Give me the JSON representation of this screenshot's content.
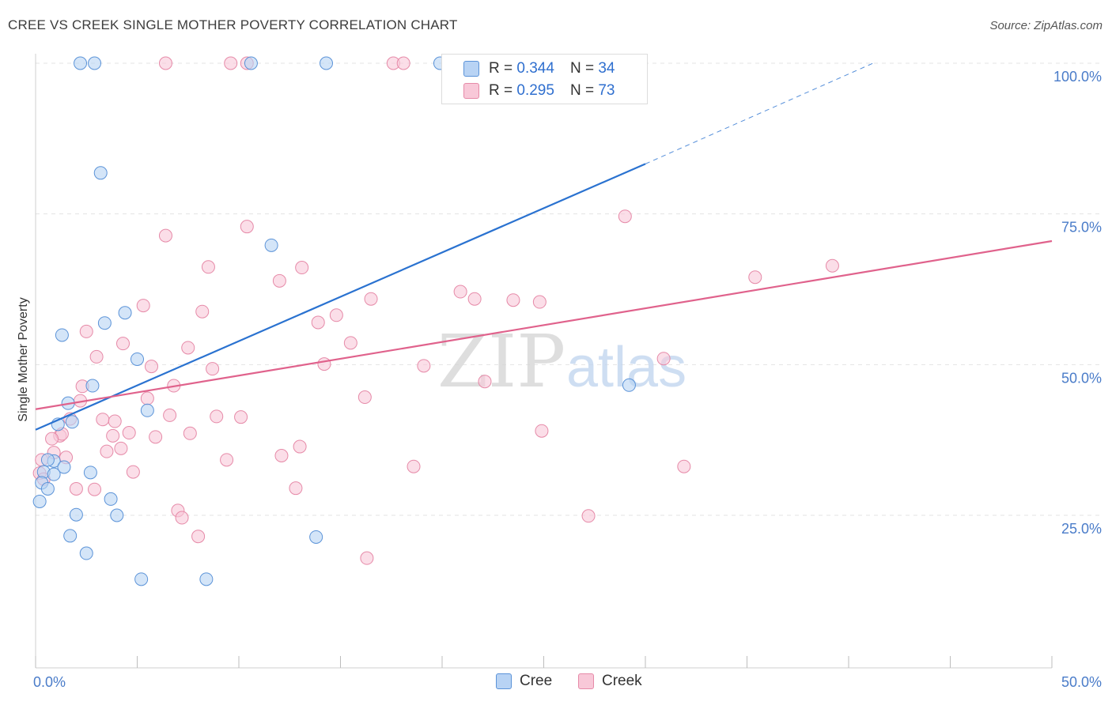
{
  "header": {
    "title": "CREE VS CREEK SINGLE MOTHER POVERTY CORRELATION CHART",
    "source": "Source: ZipAtlas.com"
  },
  "watermark": {
    "zip": "ZIP",
    "atlas": "atlas"
  },
  "legend": {
    "rows": [
      {
        "r_label": "R =",
        "r_value": "0.344",
        "n_label": "N =",
        "n_value": "34"
      },
      {
        "r_label": "R =",
        "r_value": "0.295",
        "n_label": "N =",
        "n_value": "73"
      }
    ]
  },
  "bottom_legend": [
    "Cree",
    "Creek"
  ],
  "colors": {
    "cree_fill": "#b8d3f4",
    "cree_stroke": "#5b93d8",
    "cree_line": "#2a72d0",
    "creek_fill": "#f8c8d8",
    "creek_stroke": "#e68aa8",
    "creek_line": "#e0628c",
    "grid": "#e3e3e3",
    "axis_text": "#4a7cc9"
  },
  "chart_data": {
    "type": "scatter",
    "title": "CREE VS CREEK SINGLE MOTHER POVERTY CORRELATION CHART",
    "xlabel": "",
    "ylabel": "Single Mother Poverty",
    "xlim": [
      0,
      50
    ],
    "ylim": [
      0,
      102
    ],
    "x_tick_labels": [
      "0.0%",
      "50.0%"
    ],
    "y_ticks": [
      25,
      50,
      75,
      100
    ],
    "y_tick_labels": [
      "25.0%",
      "50.0%",
      "75.0%",
      "100.0%"
    ],
    "grid": true,
    "series": [
      {
        "name": "Cree",
        "r": 0.344,
        "n": 34,
        "trend": {
          "x0": 0,
          "y0": 39.2,
          "x1": 30,
          "y1": 83.3,
          "dashed_to_x": 41.2,
          "dashed_to_y": 100
        },
        "points": [
          [
            2.2,
            100
          ],
          [
            2.9,
            100
          ],
          [
            10.6,
            100
          ],
          [
            14.3,
            100
          ],
          [
            19.9,
            100
          ],
          [
            3.2,
            81.8
          ],
          [
            11.6,
            69.8
          ],
          [
            4.4,
            58.6
          ],
          [
            3.4,
            56.9
          ],
          [
            1.3,
            54.9
          ],
          [
            5.0,
            50.9
          ],
          [
            2.8,
            46.5
          ],
          [
            29.2,
            46.6
          ],
          [
            1.6,
            43.6
          ],
          [
            5.5,
            42.4
          ],
          [
            1.1,
            40.1
          ],
          [
            1.8,
            40.5
          ],
          [
            0.9,
            34.0
          ],
          [
            1.4,
            33.0
          ],
          [
            0.4,
            32.2
          ],
          [
            0.9,
            31.8
          ],
          [
            2.7,
            32.1
          ],
          [
            0.3,
            30.4
          ],
          [
            0.6,
            29.4
          ],
          [
            3.7,
            27.7
          ],
          [
            0.2,
            27.3
          ],
          [
            2.0,
            25.1
          ],
          [
            4.0,
            25.0
          ],
          [
            1.7,
            21.6
          ],
          [
            13.8,
            21.4
          ],
          [
            2.5,
            18.7
          ],
          [
            5.2,
            14.4
          ],
          [
            8.4,
            14.4
          ],
          [
            0.6,
            34.2
          ]
        ]
      },
      {
        "name": "Creek",
        "r": 0.295,
        "n": 73,
        "trend": {
          "x0": 0,
          "y0": 42.6,
          "x1": 50,
          "y1": 70.5
        },
        "points": [
          [
            6.4,
            100
          ],
          [
            9.6,
            100
          ],
          [
            10.4,
            100
          ],
          [
            17.6,
            100
          ],
          [
            18.1,
            100
          ],
          [
            29.0,
            74.6
          ],
          [
            10.4,
            72.9
          ],
          [
            6.4,
            71.4
          ],
          [
            8.5,
            66.2
          ],
          [
            39.2,
            66.4
          ],
          [
            13.1,
            66.1
          ],
          [
            12.0,
            63.9
          ],
          [
            35.4,
            64.5
          ],
          [
            20.9,
            62.1
          ],
          [
            21.6,
            60.9
          ],
          [
            16.5,
            60.9
          ],
          [
            24.8,
            60.4
          ],
          [
            23.5,
            60.7
          ],
          [
            5.3,
            59.8
          ],
          [
            8.2,
            58.8
          ],
          [
            14.8,
            58.2
          ],
          [
            13.9,
            57.0
          ],
          [
            2.5,
            55.5
          ],
          [
            15.5,
            53.6
          ],
          [
            4.3,
            53.5
          ],
          [
            7.5,
            52.8
          ],
          [
            3.0,
            51.3
          ],
          [
            30.9,
            51.0
          ],
          [
            14.2,
            50.1
          ],
          [
            19.1,
            49.8
          ],
          [
            5.7,
            49.7
          ],
          [
            8.7,
            49.3
          ],
          [
            22.1,
            47.2
          ],
          [
            6.8,
            46.5
          ],
          [
            2.3,
            46.4
          ],
          [
            5.5,
            44.4
          ],
          [
            16.2,
            44.6
          ],
          [
            2.2,
            44.0
          ],
          [
            6.6,
            41.6
          ],
          [
            8.9,
            41.4
          ],
          [
            10.1,
            41.3
          ],
          [
            3.3,
            40.9
          ],
          [
            1.7,
            41.0
          ],
          [
            3.9,
            40.6
          ],
          [
            24.9,
            39.0
          ],
          [
            4.6,
            38.7
          ],
          [
            7.6,
            38.6
          ],
          [
            1.2,
            38.2
          ],
          [
            1.3,
            38.5
          ],
          [
            3.8,
            38.2
          ],
          [
            5.9,
            38.0
          ],
          [
            0.8,
            37.7
          ],
          [
            4.2,
            36.1
          ],
          [
            13.0,
            36.4
          ],
          [
            3.5,
            35.6
          ],
          [
            0.9,
            35.4
          ],
          [
            12.1,
            34.9
          ],
          [
            1.5,
            34.6
          ],
          [
            9.4,
            34.2
          ],
          [
            0.3,
            34.2
          ],
          [
            18.6,
            33.1
          ],
          [
            31.9,
            33.1
          ],
          [
            4.8,
            32.2
          ],
          [
            0.2,
            32.0
          ],
          [
            0.4,
            31.0
          ],
          [
            2.0,
            29.4
          ],
          [
            2.9,
            29.3
          ],
          [
            12.8,
            29.5
          ],
          [
            7.0,
            25.8
          ],
          [
            7.2,
            24.6
          ],
          [
            27.2,
            24.9
          ],
          [
            8.0,
            21.5
          ],
          [
            16.3,
            17.9
          ]
        ]
      }
    ]
  }
}
